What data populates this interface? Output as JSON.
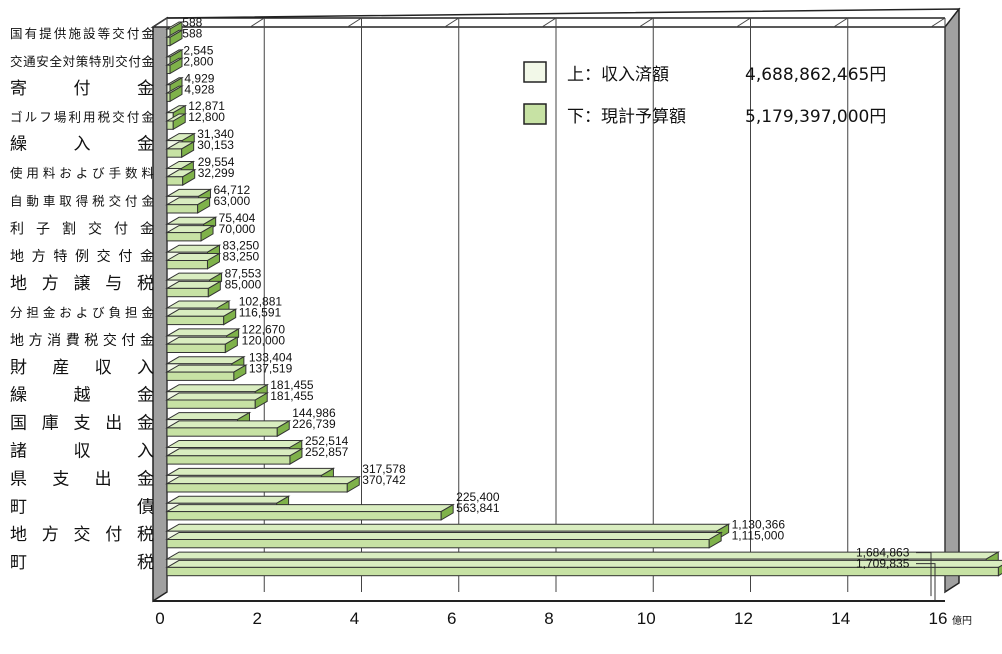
{
  "chart_data": {
    "type": "bar",
    "orientation": "horizontal",
    "style": "3d",
    "categories": [
      "国有提供施設等交付金",
      "交通安全対策特別交付金",
      "寄　付　金",
      "ゴルフ場利用税交付金",
      "繰　入　金",
      "使用料および手数料",
      "自動車取得税交付金",
      "利子割交付金",
      "地方特例交付金",
      "地方譲与税",
      "分担金および負担金",
      "地方消費税交付金",
      "財産収入",
      "繰越金",
      "国庫支出金",
      "諸収入",
      "県支出金",
      "町債",
      "地方交付税",
      "町税"
    ],
    "series": [
      {
        "name": "上：収入済額",
        "values": [
          588,
          2545,
          4929,
          12871,
          31340,
          29554,
          64712,
          75404,
          83250,
          87553,
          102881,
          122670,
          133404,
          181455,
          144986,
          252514,
          317578,
          225400,
          1130366,
          1684863
        ],
        "labels": [
          "588",
          "2,545",
          "4,929",
          "12,871",
          "31,340",
          "29,554",
          "64,712",
          "75,404",
          "83,250",
          "87,553",
          "102,881",
          "122,670",
          "133,404",
          "181,455",
          "144,986",
          "252,514",
          "317,578",
          "225,400",
          "1,130,366",
          "1,684,863"
        ]
      },
      {
        "name": "下：現計予算額",
        "values": [
          588,
          2800,
          4928,
          12800,
          30153,
          32299,
          63000,
          70000,
          83250,
          85000,
          116591,
          120000,
          137519,
          181455,
          226739,
          252857,
          370742,
          563841,
          1115000,
          1709835
        ],
        "labels": [
          "588",
          "2,800",
          "4,928",
          "12,800",
          "30,153",
          "32,299",
          "63,000",
          "70,000",
          "83,250",
          "85,000",
          "116,591",
          "120,000",
          "137,519",
          "181,455",
          "226,739",
          "252,857",
          "370,742",
          "563,841",
          "1,115,000",
          "1,709,835"
        ]
      }
    ],
    "legend": [
      {
        "label": "上：収入済額",
        "amount": "4,688,862,465円",
        "color": "#f2f8e8"
      },
      {
        "label": "下：現計予算額",
        "amount": "5,179,397,000円",
        "color": "#c7e2a4"
      }
    ],
    "legend_position": "top-right",
    "x_ticks": [
      "0",
      "2",
      "4",
      "6",
      "8",
      "10",
      "12",
      "14",
      "16"
    ],
    "x_unit": "億円",
    "xlim": [
      0,
      16
    ],
    "value_unit_per_axis_unit": 100000,
    "grid": true
  },
  "colors": {
    "upper_face": "#f2f8e8",
    "lower_face": "#c7e2a4",
    "side_dark": "#7fb24a",
    "top_light": "#d9edc0",
    "wall": "#a0a0a0",
    "wall_top": "#ffffff"
  }
}
